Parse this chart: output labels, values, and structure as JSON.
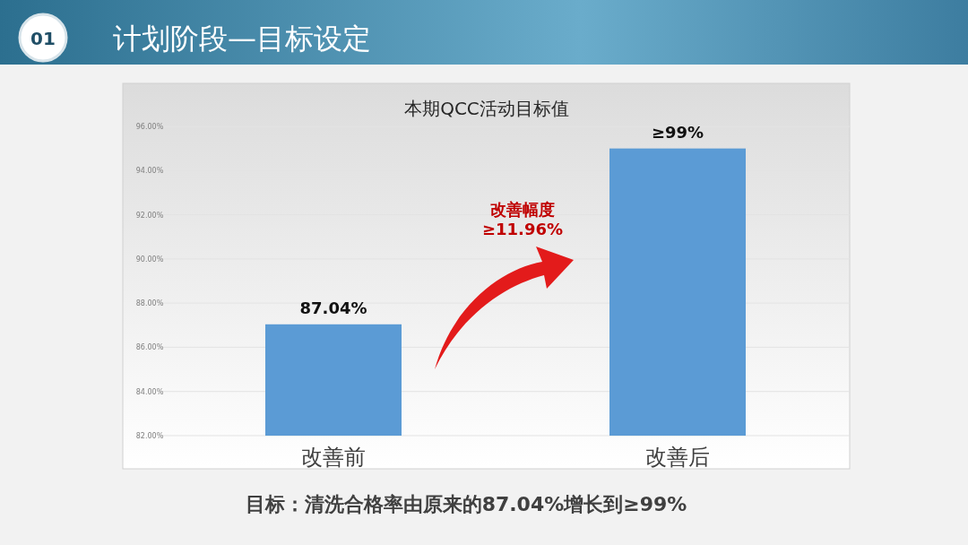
{
  "chart_data": {
    "type": "bar",
    "title": "本期QCC活动目标值",
    "categories": [
      "改善前",
      "改善后"
    ],
    "series": [
      {
        "color": "#5b9bd5",
        "values": [
          87.04,
          95.0
        ],
        "value_labels": [
          "87.04%",
          "≥99%"
        ]
      }
    ],
    "ylim": [
      82,
      96
    ],
    "yticks": [
      {
        "value": 82,
        "label": "82.00%"
      },
      {
        "value": 84,
        "label": "84.00%"
      },
      {
        "value": 86,
        "label": "86.00%"
      },
      {
        "value": 88,
        "label": "88.00%"
      },
      {
        "value": 90,
        "label": "90.00%"
      },
      {
        "value": 92,
        "label": "92.00%"
      },
      {
        "value": 94,
        "label": "94.00%"
      },
      {
        "value": 96,
        "label": "96.00%"
      }
    ],
    "grid": "y",
    "annotations": [
      "01",
      "计划阶段—目标设定",
      "改善幅度\n≥11.96%",
      "目标：清洗合格率由原来的87.04%增长到≥99%"
    ]
  }
}
